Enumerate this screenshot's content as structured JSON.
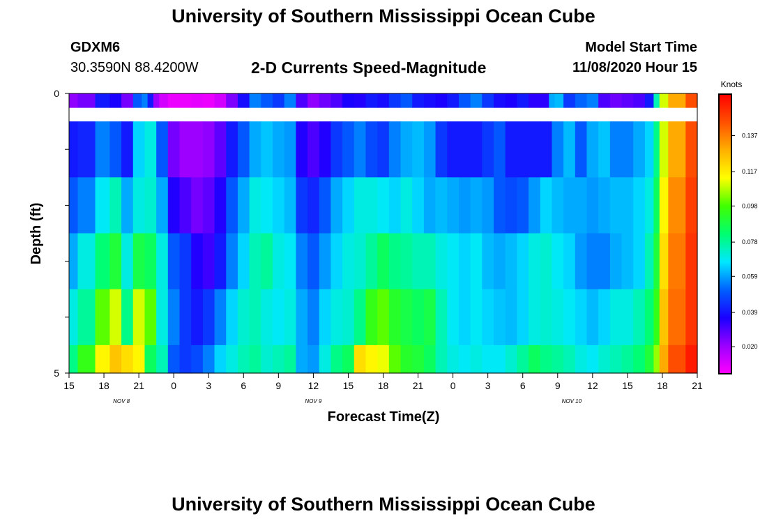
{
  "page": {
    "title_top": "University of Southern Mississippi Ocean Cube",
    "title_bottom": "University of Southern Mississippi Ocean Cube",
    "station": "GDXM6",
    "coords": "30.3590N 88.4200W",
    "subtitle": "2-D Currents Speed-Magnitude",
    "model_label": "Model Start Time",
    "model_time": "11/08/2020 Hour 15"
  },
  "chart_data": {
    "type": "heatmap",
    "title": "2-D Currents Speed-Magnitude",
    "xlabel": "Forecast Time(Z)",
    "ylabel": "Depth (ft)",
    "x_tick_labels": [
      "15",
      "18",
      "21",
      "0",
      "3",
      "6",
      "9",
      "12",
      "15",
      "18",
      "21",
      "0",
      "3",
      "6",
      "9",
      "12",
      "15",
      "18",
      "21"
    ],
    "date_labels": [
      {
        "text": "NOV  8",
        "hour_index": 4.5
      },
      {
        "text": "NOV  9",
        "hour_index": 21
      },
      {
        "text": "NOV  10",
        "hour_index": 43.2
      }
    ],
    "x_range_hours": [
      0,
      54
    ],
    "y_tick_labels": [
      "0",
      "5"
    ],
    "y_range": [
      0,
      5
    ],
    "colorbar": {
      "title": "Knots",
      "ticks": [
        "0.137",
        "0.117",
        "0.098",
        "0.078",
        "0.059",
        "0.039",
        "0.020"
      ],
      "tick_values": [
        0.137,
        0.117,
        0.098,
        0.078,
        0.059,
        0.039,
        0.02
      ],
      "range": [
        0.005,
        0.16
      ]
    },
    "depth_layers": [
      {
        "depth": 0.0,
        "thickness": 0.5,
        "hours": [
          0,
          1.5,
          3,
          4,
          5,
          6,
          6.5,
          7,
          7.5,
          8,
          9,
          10,
          11,
          12,
          13,
          14,
          15,
          16,
          17,
          18,
          19,
          20,
          21,
          22,
          23,
          24,
          25,
          26,
          27,
          28,
          29,
          30,
          31,
          32,
          33,
          34,
          35,
          36,
          37,
          38,
          39,
          40,
          41,
          41.5,
          42,
          43,
          44,
          45,
          46,
          47,
          48,
          49,
          50,
          50.5,
          51,
          52,
          54
        ],
        "values": [
          0.022,
          0.025,
          0.04,
          0.036,
          0.025,
          0.05,
          0.055,
          0.04,
          0.02,
          0.012,
          0.008,
          0.008,
          0.009,
          0.008,
          0.012,
          0.024,
          0.038,
          0.055,
          0.05,
          0.045,
          0.055,
          0.03,
          0.022,
          0.026,
          0.03,
          0.036,
          0.035,
          0.04,
          0.038,
          0.045,
          0.05,
          0.04,
          0.038,
          0.036,
          0.04,
          0.05,
          0.055,
          0.045,
          0.038,
          0.036,
          0.04,
          0.034,
          0.034,
          0.06,
          0.062,
          0.045,
          0.052,
          0.055,
          0.03,
          0.026,
          0.028,
          0.03,
          0.04,
          0.075,
          0.11,
          0.13,
          0.145
        ]
      },
      {
        "depth": 1.0,
        "thickness": 1.0,
        "hours": [
          0,
          1.5,
          3,
          4,
          5,
          6,
          7,
          8,
          9,
          10,
          11,
          12,
          13,
          14,
          15,
          16,
          17,
          18,
          19,
          20,
          21,
          22,
          23,
          24,
          25,
          26,
          27,
          28,
          29,
          30,
          31,
          32,
          33,
          34,
          35,
          36,
          37,
          38,
          39,
          40,
          41,
          42,
          43,
          44,
          45,
          46,
          47,
          48,
          49,
          50,
          50.5,
          51,
          52,
          54
        ],
        "values": [
          0.04,
          0.042,
          0.055,
          0.05,
          0.04,
          0.065,
          0.07,
          0.05,
          0.025,
          0.02,
          0.02,
          0.022,
          0.028,
          0.04,
          0.05,
          0.06,
          0.063,
          0.06,
          0.058,
          0.035,
          0.03,
          0.035,
          0.045,
          0.05,
          0.055,
          0.048,
          0.045,
          0.055,
          0.06,
          0.062,
          0.058,
          0.045,
          0.04,
          0.04,
          0.04,
          0.045,
          0.05,
          0.04,
          0.04,
          0.04,
          0.04,
          0.055,
          0.062,
          0.05,
          0.06,
          0.063,
          0.055,
          0.055,
          0.06,
          0.065,
          0.08,
          0.11,
          0.13,
          0.145
        ]
      },
      {
        "depth": 2.0,
        "thickness": 1.0,
        "hours": [
          0,
          1.5,
          3,
          4,
          5,
          6,
          7,
          8,
          9,
          10,
          11,
          12,
          13,
          14,
          15,
          16,
          17,
          18,
          19,
          20,
          21,
          22,
          23,
          24,
          25,
          26,
          27,
          28,
          29,
          30,
          31,
          32,
          33,
          34,
          35,
          36,
          37,
          38,
          39,
          40,
          41,
          42,
          43,
          44,
          45,
          46,
          47,
          48,
          49,
          50,
          50.5,
          51,
          52,
          54
        ],
        "values": [
          0.05,
          0.055,
          0.068,
          0.075,
          0.06,
          0.07,
          0.072,
          0.06,
          0.035,
          0.03,
          0.025,
          0.028,
          0.035,
          0.05,
          0.06,
          0.07,
          0.068,
          0.065,
          0.062,
          0.045,
          0.042,
          0.05,
          0.06,
          0.065,
          0.07,
          0.07,
          0.068,
          0.065,
          0.07,
          0.065,
          0.06,
          0.062,
          0.06,
          0.058,
          0.06,
          0.058,
          0.05,
          0.048,
          0.05,
          0.058,
          0.065,
          0.062,
          0.06,
          0.06,
          0.058,
          0.06,
          0.062,
          0.062,
          0.065,
          0.07,
          0.085,
          0.115,
          0.135,
          0.148
        ]
      },
      {
        "depth": 3.0,
        "thickness": 1.0,
        "hours": [
          0,
          1.5,
          3,
          4,
          5,
          6,
          7,
          8,
          9,
          10,
          11,
          12,
          13,
          14,
          15,
          16,
          17,
          18,
          19,
          20,
          21,
          22,
          23,
          24,
          25,
          26,
          27,
          28,
          29,
          30,
          31,
          32,
          33,
          34,
          35,
          36,
          37,
          38,
          39,
          40,
          41,
          42,
          43,
          44,
          45,
          46,
          47,
          48,
          49,
          50,
          50.5,
          51,
          52,
          54
        ],
        "values": [
          0.06,
          0.07,
          0.082,
          0.09,
          0.07,
          0.088,
          0.085,
          0.07,
          0.05,
          0.045,
          0.035,
          0.032,
          0.04,
          0.055,
          0.065,
          0.075,
          0.078,
          0.07,
          0.068,
          0.055,
          0.05,
          0.058,
          0.065,
          0.07,
          0.072,
          0.078,
          0.085,
          0.08,
          0.078,
          0.075,
          0.075,
          0.07,
          0.068,
          0.065,
          0.068,
          0.062,
          0.06,
          0.062,
          0.065,
          0.07,
          0.072,
          0.068,
          0.065,
          0.058,
          0.055,
          0.055,
          0.06,
          0.062,
          0.065,
          0.075,
          0.09,
          0.12,
          0.138,
          0.15
        ]
      },
      {
        "depth": 4.0,
        "thickness": 1.0,
        "hours": [
          0,
          1.5,
          3,
          4,
          5,
          6,
          7,
          8,
          9,
          10,
          11,
          12,
          13,
          14,
          15,
          16,
          17,
          18,
          19,
          20,
          21,
          22,
          23,
          24,
          25,
          26,
          27,
          28,
          29,
          30,
          31,
          32,
          33,
          34,
          35,
          36,
          37,
          38,
          39,
          40,
          41,
          42,
          43,
          44,
          45,
          46,
          47,
          48,
          49,
          50,
          50.5,
          51,
          52,
          54
        ],
        "values": [
          0.07,
          0.078,
          0.1,
          0.11,
          0.08,
          0.11,
          0.1,
          0.07,
          0.055,
          0.045,
          0.04,
          0.045,
          0.055,
          0.065,
          0.072,
          0.075,
          0.07,
          0.068,
          0.07,
          0.06,
          0.055,
          0.065,
          0.07,
          0.072,
          0.08,
          0.095,
          0.1,
          0.092,
          0.088,
          0.085,
          0.088,
          0.075,
          0.068,
          0.065,
          0.068,
          0.065,
          0.063,
          0.062,
          0.065,
          0.07,
          0.072,
          0.07,
          0.068,
          0.065,
          0.062,
          0.065,
          0.07,
          0.07,
          0.075,
          0.082,
          0.095,
          0.125,
          0.14,
          0.15
        ]
      },
      {
        "depth": 4.75,
        "thickness": 0.5,
        "hours": [
          0,
          1.5,
          3,
          4,
          5,
          6,
          7,
          8,
          9,
          10,
          11,
          12,
          13,
          14,
          15,
          16,
          17,
          18,
          19,
          20,
          21,
          22,
          23,
          24,
          25,
          26,
          27,
          28,
          29,
          30,
          31,
          32,
          33,
          34,
          35,
          36,
          37,
          38,
          39,
          40,
          41,
          42,
          43,
          44,
          45,
          46,
          47,
          48,
          49,
          50,
          50.5,
          51,
          52,
          54
        ],
        "values": [
          0.08,
          0.095,
          0.115,
          0.125,
          0.12,
          0.115,
          0.085,
          0.075,
          0.05,
          0.045,
          0.048,
          0.055,
          0.065,
          0.07,
          0.075,
          0.078,
          0.072,
          0.075,
          0.078,
          0.06,
          0.058,
          0.07,
          0.08,
          0.085,
          0.12,
          0.115,
          0.112,
          0.1,
          0.092,
          0.09,
          0.085,
          0.075,
          0.07,
          0.068,
          0.07,
          0.068,
          0.068,
          0.072,
          0.078,
          0.085,
          0.08,
          0.078,
          0.075,
          0.07,
          0.068,
          0.072,
          0.075,
          0.078,
          0.082,
          0.09,
          0.105,
          0.13,
          0.145,
          0.155
        ]
      }
    ]
  }
}
